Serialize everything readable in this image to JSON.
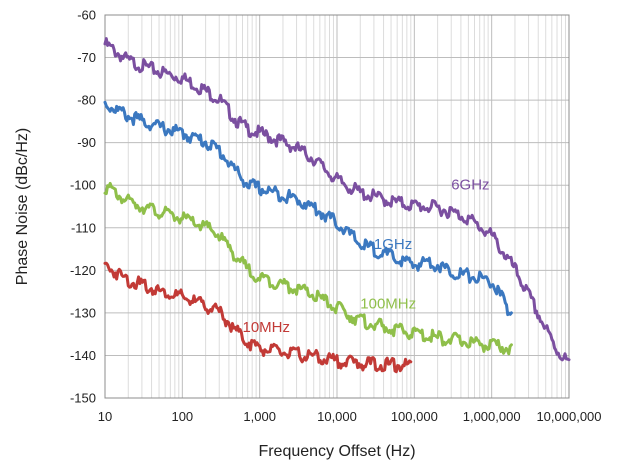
{
  "chart_data": {
    "type": "line",
    "title": "",
    "xlabel": "Frequency Offset (Hz)",
    "ylabel": "Phase Noise (dBc/Hz)",
    "xscale": "log",
    "xlim": [
      10,
      10000000
    ],
    "ylim": [
      -150,
      -60
    ],
    "xticks": [
      10,
      100,
      1000,
      10000,
      100000,
      1000000,
      10000000
    ],
    "xtick_labels": [
      "10",
      "100",
      "1,000",
      "10,000",
      "100,000",
      "1,000,000",
      "10,000,000"
    ],
    "yticks": [
      -60,
      -70,
      -80,
      -90,
      -100,
      -110,
      -120,
      -130,
      -140,
      -150
    ],
    "ytick_labels": [
      "-60",
      "-70",
      "-80",
      "-90",
      "-100",
      "-110",
      "-120",
      "-130",
      "-140",
      "-150"
    ],
    "grid": "major and minor (log)",
    "legend": "none; series labeled inline",
    "series": [
      {
        "name": "6GHz",
        "color": "#7b4fa0",
        "points": [
          [
            10,
            -66
          ],
          [
            20,
            -70
          ],
          [
            50,
            -72.5
          ],
          [
            100,
            -74
          ],
          [
            200,
            -77
          ],
          [
            300,
            -79
          ],
          [
            500,
            -84
          ],
          [
            700,
            -86
          ],
          [
            1000,
            -87
          ],
          [
            2000,
            -89
          ],
          [
            3000,
            -90.5
          ],
          [
            5000,
            -93
          ],
          [
            10000,
            -98
          ],
          [
            20000,
            -101
          ],
          [
            50000,
            -103
          ],
          [
            100000,
            -104
          ],
          [
            200000,
            -104.5
          ],
          [
            300000,
            -105.5
          ],
          [
            500000,
            -107
          ],
          [
            700000,
            -109
          ],
          [
            1000000,
            -111
          ],
          [
            2000000,
            -119
          ],
          [
            3000000,
            -125
          ],
          [
            5000000,
            -133
          ],
          [
            7000000,
            -138
          ],
          [
            10000000,
            -141
          ]
        ]
      },
      {
        "name": "1GHz",
        "color": "#3b78c0",
        "points": [
          [
            10,
            -80
          ],
          [
            20,
            -83
          ],
          [
            50,
            -85.5
          ],
          [
            100,
            -87
          ],
          [
            200,
            -89
          ],
          [
            300,
            -91
          ],
          [
            500,
            -96
          ],
          [
            700,
            -99
          ],
          [
            1000,
            -100
          ],
          [
            2000,
            -101.5
          ],
          [
            3000,
            -102.5
          ],
          [
            5000,
            -104.5
          ],
          [
            10000,
            -108
          ],
          [
            20000,
            -113
          ],
          [
            50000,
            -116
          ],
          [
            100000,
            -118
          ],
          [
            150000,
            -117
          ],
          [
            200000,
            -118
          ],
          [
            300000,
            -119.5
          ],
          [
            500000,
            -120.5
          ],
          [
            700000,
            -121
          ],
          [
            1000000,
            -122
          ],
          [
            1500000,
            -127
          ],
          [
            1800000,
            -130
          ]
        ]
      },
      {
        "name": "100MHz",
        "color": "#8fbf4a",
        "points": [
          [
            10,
            -99.5
          ],
          [
            20,
            -103
          ],
          [
            50,
            -105.5
          ],
          [
            100,
            -107
          ],
          [
            200,
            -109
          ],
          [
            300,
            -111
          ],
          [
            500,
            -116
          ],
          [
            700,
            -119
          ],
          [
            1000,
            -121
          ],
          [
            2000,
            -122.5
          ],
          [
            3000,
            -123.5
          ],
          [
            5000,
            -125
          ],
          [
            10000,
            -128
          ],
          [
            20000,
            -131
          ],
          [
            50000,
            -133
          ],
          [
            100000,
            -134
          ],
          [
            200000,
            -135
          ],
          [
            500000,
            -136
          ],
          [
            1000000,
            -137
          ],
          [
            1800000,
            -137.5
          ]
        ]
      },
      {
        "name": "10MHz",
        "color": "#c23a36",
        "points": [
          [
            10,
            -118
          ],
          [
            20,
            -121.5
          ],
          [
            50,
            -124
          ],
          [
            100,
            -125.5
          ],
          [
            200,
            -127.5
          ],
          [
            300,
            -129
          ],
          [
            500,
            -133.5
          ],
          [
            700,
            -136
          ],
          [
            1000,
            -137.5
          ],
          [
            2000,
            -138.5
          ],
          [
            5000,
            -139.5
          ],
          [
            10000,
            -140.5
          ],
          [
            20000,
            -141
          ],
          [
            50000,
            -141.5
          ],
          [
            90000,
            -141.5
          ]
        ]
      }
    ],
    "annotations": [
      {
        "text": "6GHz",
        "x": 300000,
        "y": -101,
        "color": "#7b4fa0"
      },
      {
        "text": "1GHz",
        "x": 30000,
        "y": -115,
        "color": "#3b78c0"
      },
      {
        "text": "100MHz",
        "x": 20000,
        "y": -129,
        "color": "#8fbf4a"
      },
      {
        "text": "10MHz",
        "x": 600,
        "y": -134.5,
        "color": "#c23a36"
      }
    ]
  }
}
